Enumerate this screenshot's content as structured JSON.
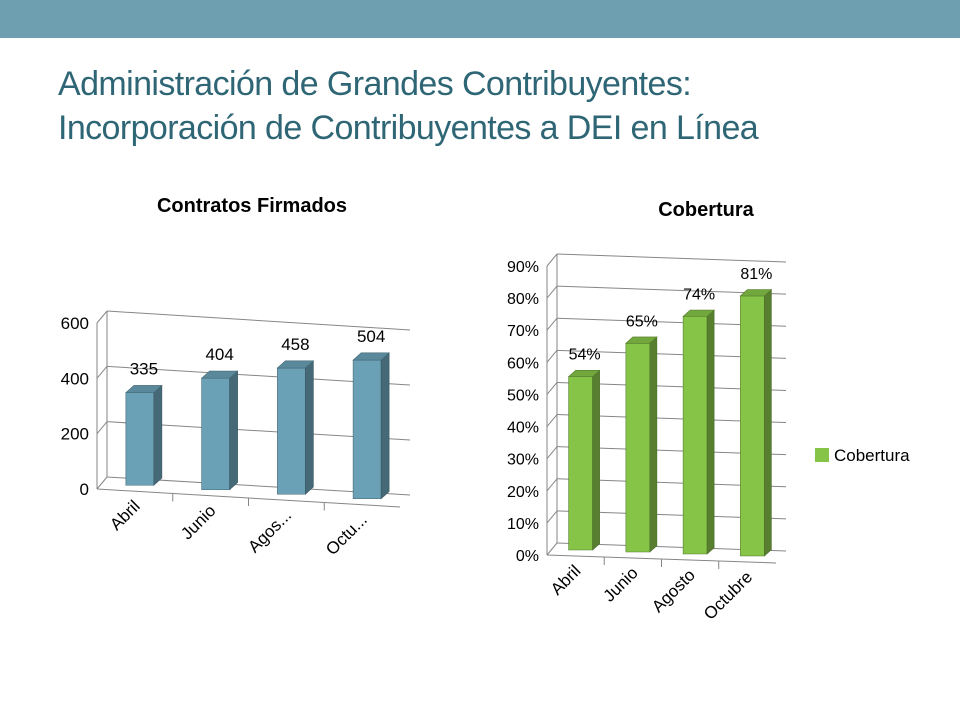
{
  "slide": {
    "title_line1": "Administración de Grandes Contribuyentes:",
    "title_line2": "Incorporación de Contribuyentes a DEI en Línea"
  },
  "colors": {
    "top_bar": "#6E9FB0",
    "title": "#2F6675",
    "bar_blue": "#6AA1B6",
    "bar_green": "#86C448",
    "grid": "#868686",
    "text": "#000000"
  },
  "chart_data": [
    {
      "type": "bar",
      "style": "3d-column",
      "title": "Contratos Firmados",
      "categories": [
        "Abril",
        "Junio",
        "Agos...",
        "Octu..."
      ],
      "values": [
        335,
        404,
        458,
        504
      ],
      "data_labels": [
        "335",
        "404",
        "458",
        "504"
      ],
      "ylim": [
        0,
        600
      ],
      "yticks": [
        0,
        200,
        400,
        600
      ],
      "ytick_labels": [
        "0",
        "200",
        "400",
        "600"
      ],
      "grid": true,
      "legend": "none",
      "color": "#6AA1B6"
    },
    {
      "type": "bar",
      "style": "3d-column",
      "title": "Cobertura",
      "categories": [
        "Abril",
        "Junio",
        "Agosto",
        "Octubre"
      ],
      "series": [
        {
          "name": "Cobertura",
          "values": [
            54,
            65,
            74,
            81
          ]
        }
      ],
      "data_labels": [
        "54%",
        "65%",
        "74%",
        "81%"
      ],
      "ylim": [
        0,
        90
      ],
      "yticks": [
        0,
        10,
        20,
        30,
        40,
        50,
        60,
        70,
        80,
        90
      ],
      "ytick_labels": [
        "0%",
        "10%",
        "20%",
        "30%",
        "40%",
        "50%",
        "60%",
        "70%",
        "80%",
        "90%"
      ],
      "grid": true,
      "legend": "right",
      "color": "#86C448"
    }
  ]
}
